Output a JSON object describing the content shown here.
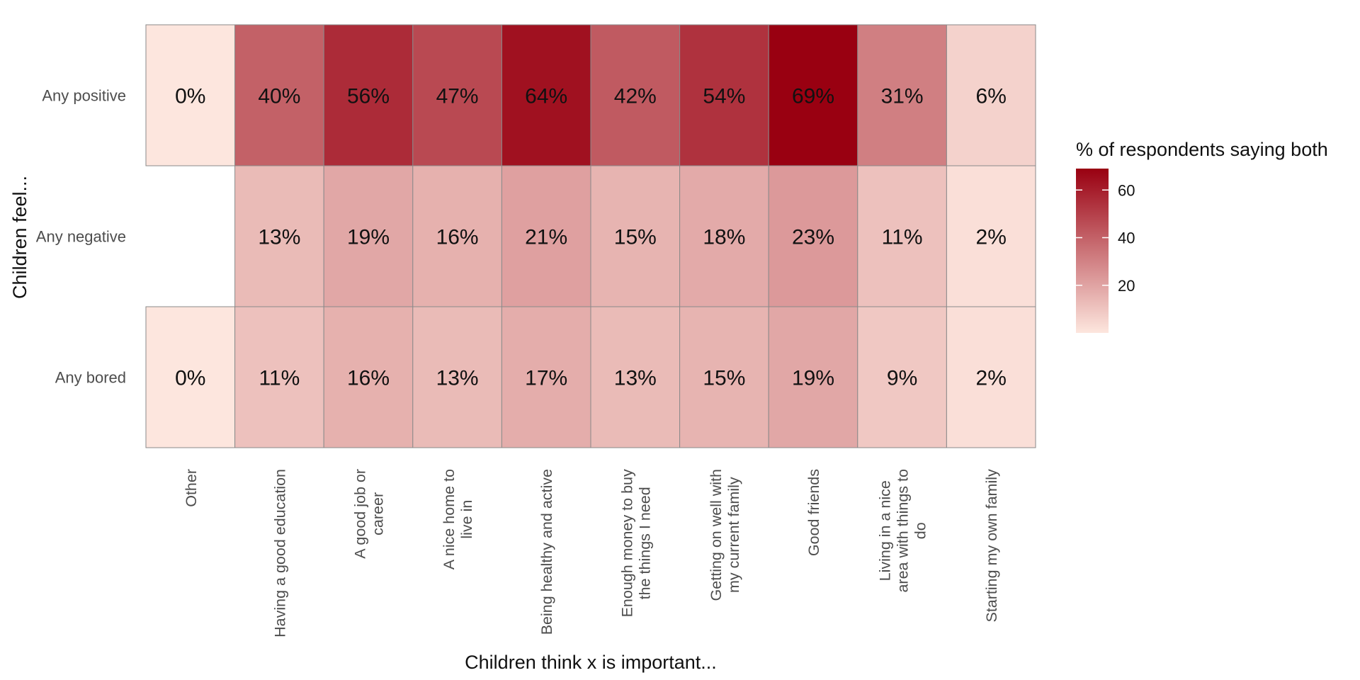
{
  "chart_data": {
    "type": "heatmap",
    "title": "",
    "xlabel": "Children think x is important...",
    "ylabel": "Children feel...",
    "x_categories": [
      [
        "Other"
      ],
      [
        "Having a good education"
      ],
      [
        "A good job or",
        "career"
      ],
      [
        "A nice home to",
        "live in"
      ],
      [
        "Being healthy and active"
      ],
      [
        "Enough money to buy",
        "the things I need"
      ],
      [
        "Getting on well with",
        "my current family"
      ],
      [
        "Good friends"
      ],
      [
        "Living in a nice",
        "area with things to",
        "do"
      ],
      [
        "Starting my own family"
      ]
    ],
    "y_categories": [
      "Any positive",
      "Any negative",
      "Any bored"
    ],
    "values": [
      [
        0,
        40,
        56,
        47,
        64,
        42,
        54,
        69,
        31,
        6
      ],
      [
        null,
        13,
        19,
        16,
        21,
        15,
        18,
        23,
        11,
        2
      ],
      [
        0,
        11,
        16,
        13,
        17,
        13,
        15,
        19,
        9,
        2
      ]
    ],
    "labels": [
      [
        "0%",
        "40%",
        "56%",
        "47%",
        "64%",
        "42%",
        "54%",
        "69%",
        "31%",
        "6%"
      ],
      [
        "",
        "13%",
        "19%",
        "16%",
        "21%",
        "15%",
        "18%",
        "23%",
        "11%",
        "2%"
      ],
      [
        "0%",
        "11%",
        "16%",
        "13%",
        "17%",
        "13%",
        "15%",
        "19%",
        "9%",
        "2%"
      ]
    ],
    "legend": {
      "title": "% of respondents saying both",
      "ticks": [
        20,
        40,
        60
      ],
      "range": [
        0,
        69
      ],
      "position": "right"
    },
    "colors": {
      "low": "#fde6de",
      "high": "#990011"
    },
    "grid": false
  }
}
